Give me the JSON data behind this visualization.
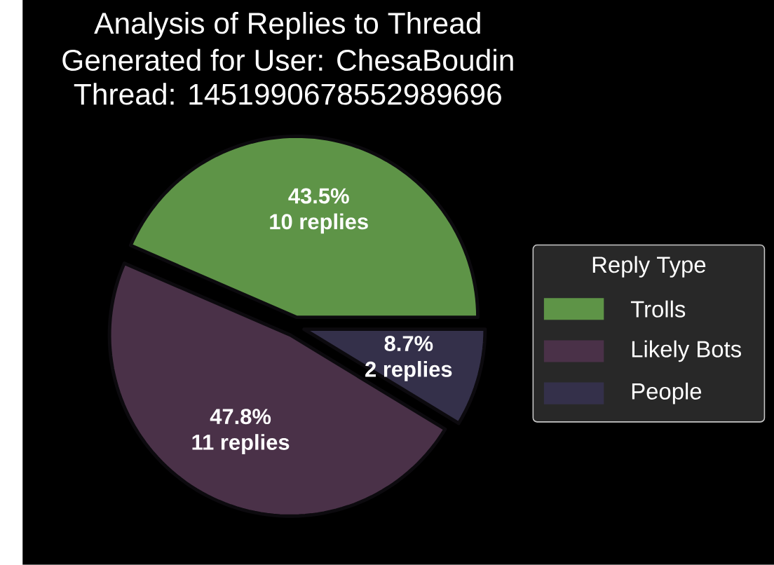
{
  "chart_data": {
    "type": "pie",
    "title": "Analysis of Replies to Thread",
    "subtitle": "Generated for User: ChesaBoudin",
    "annotations": [
      "Thread: 1451990678552989696",
      "10 replies",
      "11 replies",
      "2 replies"
    ],
    "categories": [
      "Trolls",
      "Likely Bots",
      "People"
    ],
    "values": [
      43.5,
      47.8,
      8.7
    ],
    "value_labels": [
      "43.5%",
      "47.8%",
      "8.7%"
    ],
    "colors": [
      "#5e9447",
      "#4a3148",
      "#34304a"
    ],
    "legend_title": "Reply Type",
    "legend": "right"
  }
}
